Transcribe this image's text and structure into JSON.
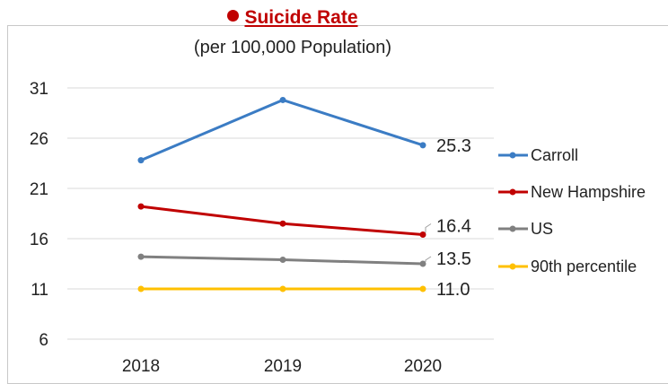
{
  "chart_data": {
    "type": "line",
    "title": "Suicide Rate",
    "subtitle": "(per 100,000 Population)",
    "categories": [
      "2018",
      "2019",
      "2020"
    ],
    "yticks": [
      6,
      11,
      16,
      21,
      26,
      31
    ],
    "ylim": [
      6,
      31
    ],
    "grid": true,
    "legend_position": "right",
    "series": [
      {
        "name": "Carroll",
        "color": "#3b7cc4",
        "values": [
          23.8,
          29.8,
          25.3
        ]
      },
      {
        "name": "New Hampshire",
        "color": "#c00000",
        "values": [
          19.2,
          17.5,
          16.4
        ]
      },
      {
        "name": "US",
        "color": "#808080",
        "values": [
          14.2,
          13.9,
          13.5
        ]
      },
      {
        "name": "90th percentile",
        "color": "#ffc000",
        "values": [
          11.0,
          11.0,
          11.0
        ]
      }
    ],
    "data_labels": [
      {
        "series": "Carroll",
        "text": "25.3"
      },
      {
        "series": "New Hampshire",
        "text": "16.4"
      },
      {
        "series": "US",
        "text": "13.5"
      },
      {
        "series": "90th percentile",
        "text": "11.0"
      }
    ]
  }
}
